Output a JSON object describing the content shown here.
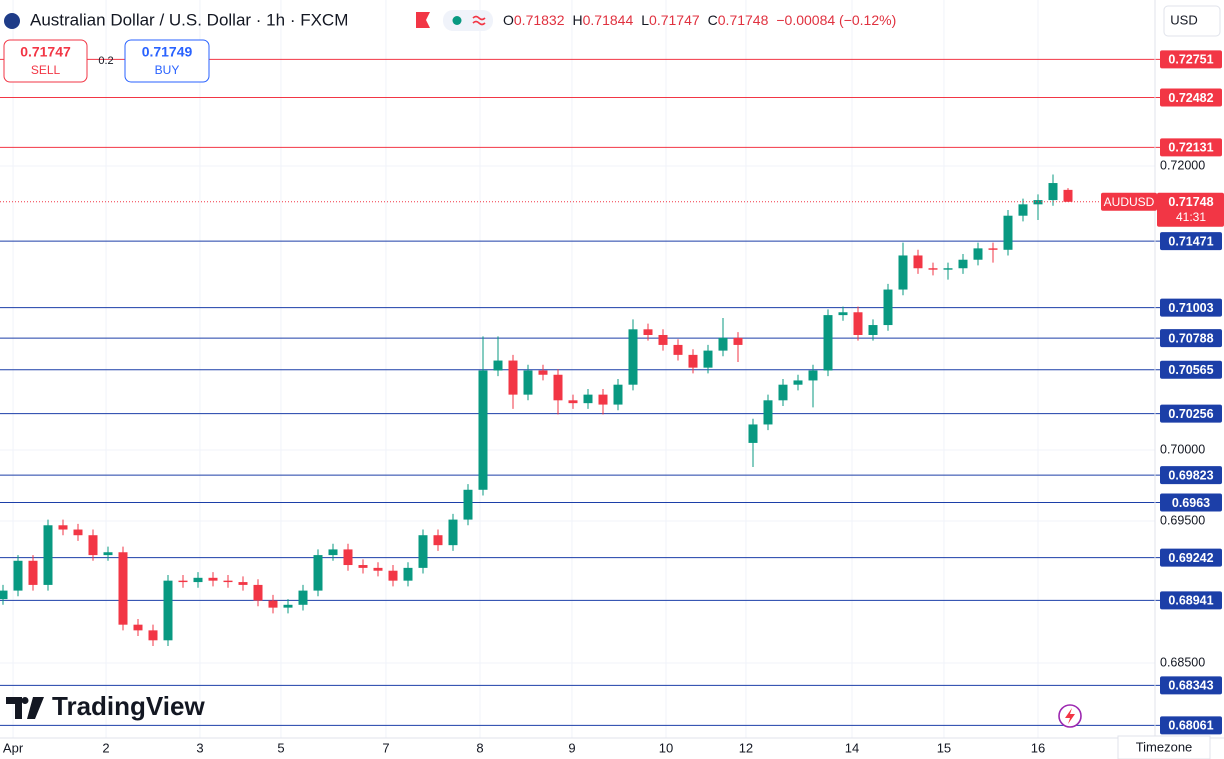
{
  "chart_data": {
    "type": "candlestick",
    "title": "Australian Dollar / U.S. Dollar · 1h · FXCM",
    "ohlc": [
      {
        "key": "O",
        "value": "0.71832"
      },
      {
        "key": "H",
        "value": "0.71844"
      },
      {
        "key": "L",
        "value": "0.71747"
      },
      {
        "key": "C",
        "value": "0.71748"
      }
    ],
    "change": "−0.00084 (−0.12%)",
    "sell": {
      "price": "0.71747",
      "label": "SELL"
    },
    "spread": "0.2",
    "buy": {
      "price": "0.71749",
      "label": "BUY"
    },
    "currency": "USD",
    "brand": "TradingView",
    "timezone_button": "Timezone",
    "symbol": "AUDUSD",
    "last_price": 0.71748,
    "countdown": "41:31",
    "up_color": "#089981",
    "down_color": "#f23645",
    "series": [
      {
        "name": "AUDUSD",
        "open": [
          0.6895,
          0.6901,
          0.6922,
          0.6905,
          0.6947,
          0.6944,
          0.694,
          0.6926,
          0.6928,
          0.6877,
          0.6873,
          0.6866,
          0.6908,
          0.6907,
          0.691,
          0.6908,
          0.6907,
          0.6905,
          0.6894,
          0.6889,
          0.6891,
          0.6901,
          0.6926,
          0.693,
          0.6919,
          0.6917,
          0.6915,
          0.6908,
          0.6917,
          0.694,
          0.6933,
          0.6951,
          0.6972,
          0.7056,
          0.7063,
          0.7039,
          0.7056,
          0.7053,
          0.7035,
          0.7033,
          0.7039,
          0.7032,
          0.7046,
          0.7085,
          0.7081,
          0.7074,
          0.7067,
          0.7058,
          0.707,
          0.7079,
          0.7005,
          0.7018,
          0.7035,
          0.7046,
          0.7049,
          0.7056,
          0.7095,
          0.7097,
          0.7081,
          0.7088,
          0.7113,
          0.7137,
          0.7128,
          0.7127,
          0.7128,
          0.7134,
          0.7142,
          0.7141,
          0.7165,
          0.7173,
          0.7176,
          0.71832
        ],
        "high": [
          0.6905,
          0.6926,
          0.6926,
          0.6951,
          0.6951,
          0.6948,
          0.6944,
          0.6932,
          0.6932,
          0.6881,
          0.6877,
          0.6912,
          0.6912,
          0.6914,
          0.6914,
          0.6912,
          0.6911,
          0.6909,
          0.6898,
          0.6895,
          0.6905,
          0.693,
          0.6934,
          0.6934,
          0.6923,
          0.6921,
          0.6919,
          0.6921,
          0.6944,
          0.6944,
          0.6955,
          0.6976,
          0.708,
          0.708,
          0.7067,
          0.706,
          0.706,
          0.7057,
          0.7039,
          0.7043,
          0.7043,
          0.705,
          0.7092,
          0.7089,
          0.7085,
          0.7078,
          0.7071,
          0.7074,
          0.7093,
          0.7083,
          0.7022,
          0.7039,
          0.705,
          0.7053,
          0.706,
          0.7099,
          0.7101,
          0.7101,
          0.7092,
          0.7117,
          0.7146,
          0.7141,
          0.7132,
          0.7132,
          0.7138,
          0.7146,
          0.7146,
          0.7169,
          0.7177,
          0.718,
          0.7194,
          0.71844
        ],
        "low": [
          0.6891,
          0.6897,
          0.6901,
          0.6901,
          0.694,
          0.6936,
          0.6922,
          0.6922,
          0.6873,
          0.6869,
          0.6862,
          0.6862,
          0.6903,
          0.6903,
          0.6904,
          0.6903,
          0.6901,
          0.689,
          0.6885,
          0.6885,
          0.6887,
          0.6897,
          0.6922,
          0.6915,
          0.6913,
          0.6911,
          0.6904,
          0.6904,
          0.6913,
          0.6929,
          0.6929,
          0.6947,
          0.6968,
          0.7052,
          0.7029,
          0.7035,
          0.7049,
          0.7025,
          0.7029,
          0.7029,
          0.7025,
          0.7028,
          0.7042,
          0.7077,
          0.707,
          0.7063,
          0.7054,
          0.7054,
          0.7066,
          0.7062,
          0.6988,
          0.7014,
          0.7031,
          0.7042,
          0.703,
          0.7052,
          0.7091,
          0.7077,
          0.7077,
          0.7084,
          0.7109,
          0.7124,
          0.7123,
          0.712,
          0.7124,
          0.713,
          0.7132,
          0.7137,
          0.7161,
          0.7162,
          0.7172,
          0.71747
        ],
        "close": [
          0.6901,
          0.6922,
          0.6905,
          0.6947,
          0.6944,
          0.694,
          0.6926,
          0.6928,
          0.6877,
          0.6873,
          0.6866,
          0.6908,
          0.6907,
          0.691,
          0.6908,
          0.6907,
          0.6905,
          0.6894,
          0.6889,
          0.6891,
          0.6901,
          0.6926,
          0.693,
          0.6919,
          0.6917,
          0.6915,
          0.6908,
          0.6917,
          0.694,
          0.6933,
          0.6951,
          0.6972,
          0.7056,
          0.7063,
          0.7039,
          0.7056,
          0.7053,
          0.7035,
          0.7033,
          0.7039,
          0.7032,
          0.7046,
          0.7085,
          0.7081,
          0.7074,
          0.7067,
          0.7058,
          0.707,
          0.7079,
          0.7074,
          0.7018,
          0.7035,
          0.7046,
          0.7049,
          0.7056,
          0.7095,
          0.7097,
          0.7081,
          0.7088,
          0.7113,
          0.7137,
          0.7128,
          0.7127,
          0.7128,
          0.7134,
          0.7142,
          0.7141,
          0.7165,
          0.7173,
          0.7176,
          0.7188,
          0.71748
        ]
      }
    ],
    "xlim": [
      -0.2,
      76.8
    ],
    "xticks": [
      {
        "value": 0.67,
        "label": "Apr"
      },
      {
        "value": 6.87,
        "label": "2"
      },
      {
        "value": 13.13,
        "label": "3"
      },
      {
        "value": 18.53,
        "label": "5"
      },
      {
        "value": 25.53,
        "label": "7"
      },
      {
        "value": 31.8,
        "label": "8"
      },
      {
        "value": 37.93,
        "label": "9"
      },
      {
        "value": 44.2,
        "label": "10"
      },
      {
        "value": 49.53,
        "label": "12"
      },
      {
        "value": 56.6,
        "label": "14"
      },
      {
        "value": 62.73,
        "label": "15"
      },
      {
        "value": 69.0,
        "label": "16"
      }
    ],
    "ylim": [
      0.67972,
      0.73169
    ],
    "yticks": [
      {
        "value": 0.72,
        "label": "0.72000"
      },
      {
        "value": 0.7,
        "label": "0.70000"
      },
      {
        "value": 0.695,
        "label": "0.69500"
      },
      {
        "value": 0.685,
        "label": "0.68500"
      }
    ],
    "grid": true,
    "resistance_color": "#f23645",
    "support_color": "#1c3fa8",
    "resistance_levels": [
      0.72751,
      0.72482,
      0.72131
    ],
    "support_levels": [
      0.71471,
      0.71003,
      0.70788,
      0.70565,
      0.70256,
      0.69823,
      0.6963,
      0.69242,
      0.68941,
      0.68343,
      0.68061
    ]
  }
}
